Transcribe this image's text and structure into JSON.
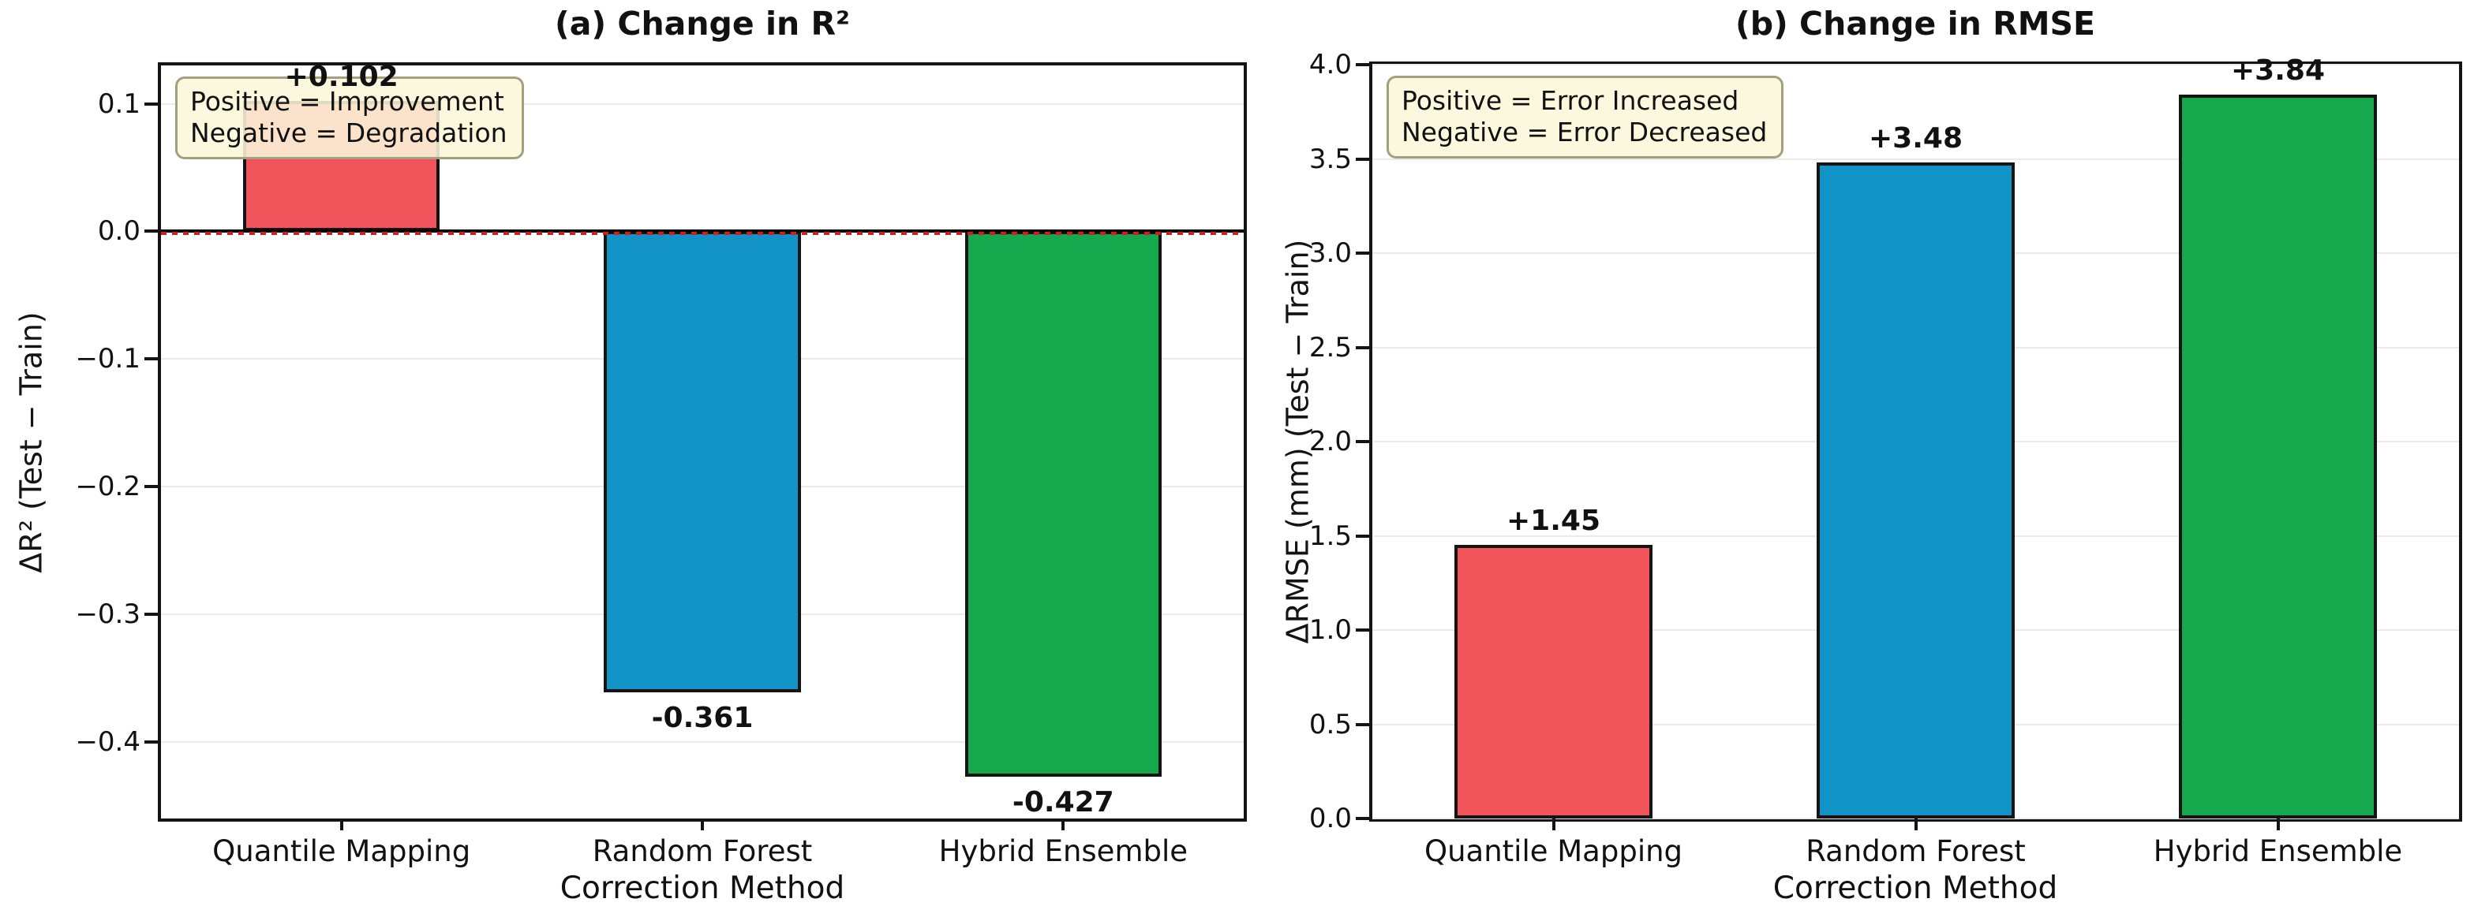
{
  "chart_data": [
    {
      "type": "bar",
      "panel": "a",
      "title": "(a) Change in R²",
      "xlabel": "Correction Method",
      "ylabel": "ΔR² (Test − Train)",
      "categories": [
        "Quantile Mapping",
        "Random Forest",
        "Hybrid Ensemble"
      ],
      "values": [
        0.102,
        -0.361,
        -0.427
      ],
      "bar_labels": [
        "+0.102",
        "-0.361",
        "-0.427"
      ],
      "bar_colors": [
        "#f0545a",
        "#1193c8",
        "#16a84c"
      ],
      "bar_edge_color": "#141414",
      "ylim": [
        -0.46,
        0.13
      ],
      "yticks": [
        0.1,
        0.0,
        -0.1,
        -0.2,
        -0.3,
        -0.4
      ],
      "ytick_labels": [
        "0.1",
        "0.0",
        "−0.1",
        "−0.2",
        "−0.3",
        "−0.4"
      ],
      "grid": true,
      "legend_position": "upper-left",
      "zero_line": {
        "show": true,
        "color": "#000000",
        "dash_color": "#cc2020"
      },
      "annotation": {
        "lines": [
          "Positive = Improvement",
          "Negative = Degradation"
        ],
        "bg": "#faf7da",
        "border": "#a3a07e"
      }
    },
    {
      "type": "bar",
      "panel": "b",
      "title": "(b) Change in RMSE",
      "xlabel": "Correction Method",
      "ylabel": "ΔRMSE (mm) (Test − Train)",
      "categories": [
        "Quantile Mapping",
        "Random Forest",
        "Hybrid Ensemble"
      ],
      "values": [
        1.45,
        3.48,
        3.84
      ],
      "bar_labels": [
        "+1.45",
        "+3.48",
        "+3.84"
      ],
      "bar_colors": [
        "#f0545a",
        "#1193c8",
        "#16a84c"
      ],
      "bar_edge_color": "#141414",
      "ylim": [
        0.0,
        4.0
      ],
      "yticks": [
        4.0,
        3.5,
        3.0,
        2.5,
        2.0,
        1.5,
        1.0,
        0.5,
        0.0
      ],
      "ytick_labels": [
        "4.0",
        "3.5",
        "3.0",
        "2.5",
        "2.0",
        "1.5",
        "1.0",
        "0.5",
        "0.0"
      ],
      "grid": true,
      "legend_position": "upper-left",
      "zero_line": {
        "show": false,
        "color": "#000000",
        "dash_color": "#cc2020"
      },
      "annotation": {
        "lines": [
          "Positive = Error Increased",
          "Negative = Error Decreased"
        ],
        "bg": "#faf7da",
        "border": "#a3a07e"
      }
    }
  ]
}
